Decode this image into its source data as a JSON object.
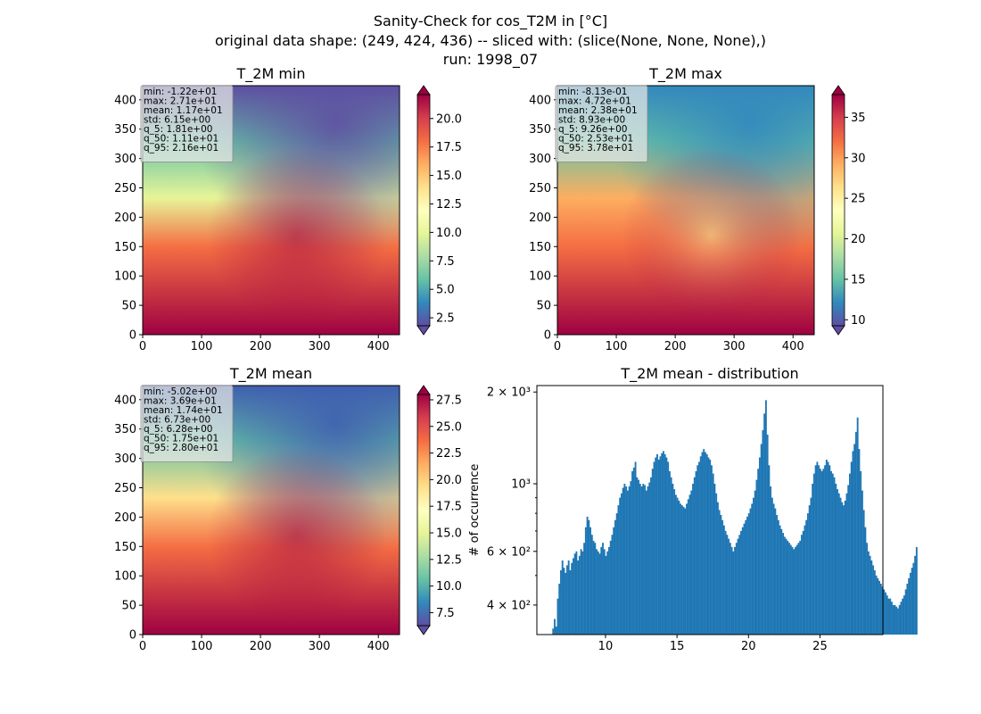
{
  "suptitle": [
    "Sanity-Check for cos_T2M in [°C]",
    "original data shape: (249, 424, 436) -- sliced with: (slice(None, None, None),)",
    "run: 1998_07"
  ],
  "colors": {
    "hist_bar": "#1f77b4",
    "colormap": "Spectral_r"
  },
  "chart_data": [
    {
      "type": "heatmap",
      "title": "T_2M min",
      "xlim": [
        0,
        436
      ],
      "ylim": [
        0,
        424
      ],
      "xticks": [
        0,
        100,
        200,
        300,
        400
      ],
      "yticks": [
        0,
        50,
        100,
        150,
        200,
        250,
        300,
        350,
        400
      ],
      "colorbar": {
        "range": [
          1.8,
          22.1
        ],
        "ticks": [
          "2.5",
          "5.0",
          "7.5",
          "10.0",
          "12.5",
          "15.0",
          "17.5",
          "20.0"
        ],
        "extend": "both"
      },
      "stats": [
        "min: -1.22e+01",
        "max: 2.71e+01",
        "mean: 1.17e+01",
        "std: 6.15e+00",
        "q_5: 1.81e+00",
        "q_50: 1.11e+01",
        "q_95: 2.16e+01"
      ]
    },
    {
      "type": "heatmap",
      "title": "T_2M max",
      "xlim": [
        0,
        436
      ],
      "ylim": [
        0,
        424
      ],
      "xticks": [
        0,
        100,
        200,
        300,
        400
      ],
      "yticks": [
        0,
        50,
        100,
        150,
        200,
        250,
        300,
        350,
        400
      ],
      "colorbar": {
        "range": [
          9.26,
          37.8
        ],
        "ticks": [
          "10",
          "15",
          "20",
          "25",
          "30",
          "35"
        ],
        "extend": "both"
      },
      "stats": [
        "min: -8.13e-01",
        "max: 4.72e+01",
        "mean: 2.38e+01",
        "std: 8.93e+00",
        "q_5: 9.26e+00",
        "q_50: 2.53e+01",
        "q_95: 3.78e+01"
      ]
    },
    {
      "type": "heatmap",
      "title": "T_2M mean",
      "xlim": [
        0,
        436
      ],
      "ylim": [
        0,
        424
      ],
      "xticks": [
        0,
        100,
        200,
        300,
        400
      ],
      "yticks": [
        0,
        50,
        100,
        150,
        200,
        250,
        300,
        350,
        400
      ],
      "colorbar": {
        "range": [
          6.28,
          28.0
        ],
        "ticks": [
          "7.5",
          "10.0",
          "12.5",
          "15.0",
          "17.5",
          "20.0",
          "22.5",
          "25.0",
          "27.5"
        ],
        "extend": "both"
      },
      "stats": [
        "min: -5.02e+00",
        "max: 3.69e+01",
        "mean: 1.74e+01",
        "std: 6.73e+00",
        "q_5: 6.28e+00",
        "q_50: 1.75e+01",
        "q_95: 2.80e+01"
      ]
    },
    {
      "type": "bar",
      "title": "T_2M mean - distribution",
      "ylabel": "# of occurrence",
      "y_scale": "log",
      "xlim": [
        5.2,
        29.4
      ],
      "ylim": [
        320,
        2100
      ],
      "xticks": [
        10,
        15,
        20,
        25
      ],
      "yticks": [
        {
          "value": 400,
          "label": "4 × 10²"
        },
        {
          "value": 600,
          "label": "6 × 10²"
        },
        {
          "value": 1000,
          "label": "10³"
        },
        {
          "value": 2000,
          "label": "2 × 10³"
        }
      ],
      "bin_start": 6.28,
      "bin_width": 0.10864,
      "values": [
        335,
        360,
        340,
        420,
        470,
        520,
        560,
        530,
        510,
        540,
        560,
        520,
        550,
        570,
        590,
        600,
        560,
        580,
        610,
        600,
        640,
        720,
        780,
        760,
        720,
        680,
        650,
        640,
        610,
        600,
        590,
        620,
        640,
        610,
        580,
        600,
        620,
        650,
        680,
        720,
        760,
        800,
        850,
        900,
        930,
        970,
        1000,
        980,
        950,
        980,
        1020,
        1100,
        1130,
        1180,
        1050,
        1030,
        1000,
        980,
        1000,
        990,
        950,
        980,
        1010,
        1050,
        1120,
        1180,
        1220,
        1250,
        1200,
        1230,
        1260,
        1280,
        1250,
        1220,
        1180,
        1100,
        1050,
        1000,
        960,
        920,
        900,
        880,
        860,
        850,
        840,
        830,
        860,
        890,
        920,
        950,
        1000,
        1050,
        1100,
        1150,
        1180,
        1230,
        1270,
        1300,
        1270,
        1250,
        1220,
        1200,
        1150,
        1080,
        1000,
        930,
        870,
        820,
        790,
        760,
        730,
        700,
        680,
        660,
        640,
        620,
        600,
        620,
        640,
        660,
        680,
        700,
        720,
        740,
        760,
        780,
        800,
        830,
        860,
        900,
        950,
        1030,
        1120,
        1220,
        1350,
        1500,
        1700,
        1880,
        1450,
        1150,
        980,
        900,
        860,
        830,
        790,
        760,
        730,
        710,
        690,
        670,
        660,
        650,
        640,
        630,
        620,
        610,
        620,
        630,
        640,
        650,
        680,
        700,
        730,
        760,
        800,
        850,
        900,
        1000,
        1080,
        1150,
        1180,
        1150,
        1120,
        1100,
        1120,
        1150,
        1200,
        1180,
        1150,
        1100,
        1080,
        1050,
        1000,
        960,
        930,
        900,
        870,
        850,
        880,
        930,
        990,
        1080,
        1180,
        1280,
        1350,
        1480,
        1650,
        1300,
        1100,
        950,
        820,
        720,
        640,
        600,
        580,
        560,
        540,
        520,
        500,
        490,
        480,
        470,
        460,
        450,
        440,
        430,
        420,
        420,
        410,
        400,
        400,
        395,
        390,
        400,
        410,
        420,
        430,
        450,
        470,
        490,
        510,
        530,
        550,
        580,
        620
      ],
      "xlabel": ""
    }
  ]
}
